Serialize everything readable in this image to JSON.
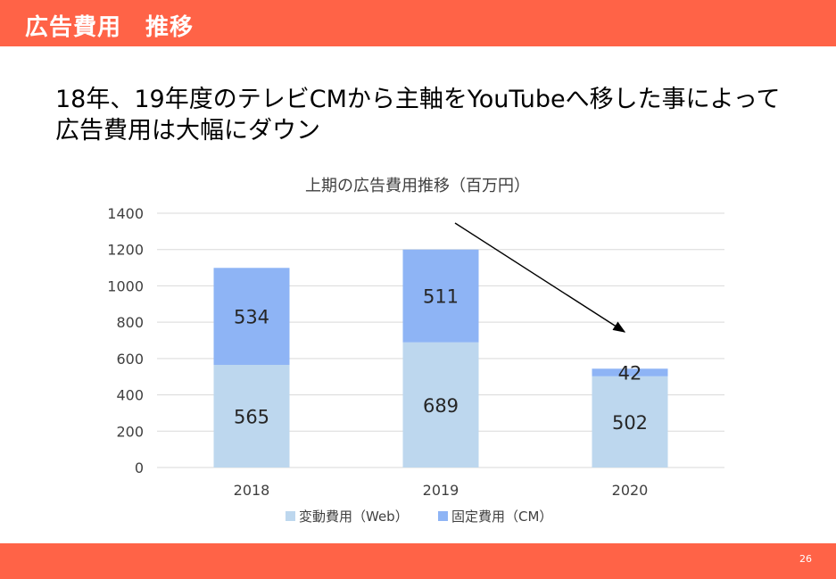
{
  "header": {
    "title": "広告費用　推移"
  },
  "headline": {
    "line1": "18年、19年度のテレビCMから主軸をYouTubeへ移した事によって",
    "line2": "広告費用は大幅にダウン"
  },
  "chart_data": {
    "type": "bar",
    "stacked": true,
    "title": "上期の広告費用推移（百万円）",
    "categories": [
      "2018",
      "2019",
      "2020"
    ],
    "series": [
      {
        "name": "変動費用（Web）",
        "values": [
          565,
          689,
          502
        ],
        "color": "#bdd7ee"
      },
      {
        "name": "固定費用（CM）",
        "values": [
          534,
          511,
          42
        ],
        "color": "#8eb4f5"
      }
    ],
    "ylim": [
      0,
      1400
    ],
    "yticks": [
      "0",
      "200",
      "400",
      "600",
      "800",
      "1000",
      "1200",
      "1400"
    ],
    "grid": true,
    "legend": "bottom",
    "annotation": "arrow"
  },
  "footer": {
    "page_number": "26"
  }
}
